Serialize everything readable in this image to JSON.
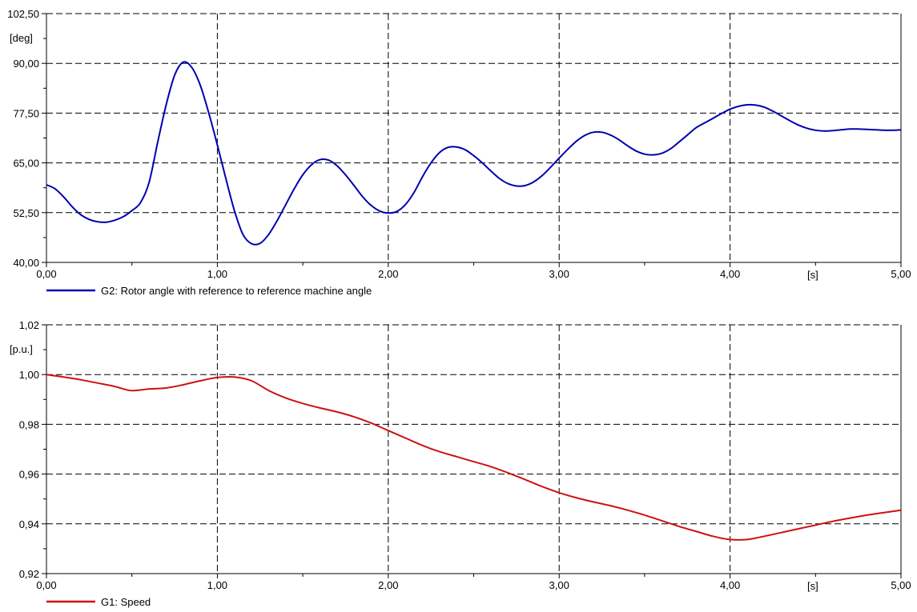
{
  "chart_data": [
    {
      "type": "line",
      "ylabel": "[deg]",
      "xlabel": "[s]",
      "xlim": [
        0,
        5
      ],
      "ylim": [
        40,
        102.5
      ],
      "xticks": [
        {
          "value": 0,
          "label": "0,00"
        },
        {
          "value": 1,
          "label": "1,00"
        },
        {
          "value": 2,
          "label": "2,00"
        },
        {
          "value": 3,
          "label": "3,00"
        },
        {
          "value": 4,
          "label": "4,00"
        },
        {
          "value": 5,
          "label": "5,00"
        }
      ],
      "yticks": [
        {
          "value": 40,
          "label": "40,00"
        },
        {
          "value": 52.5,
          "label": "52,50"
        },
        {
          "value": 65,
          "label": "65,00"
        },
        {
          "value": 77.5,
          "label": "77,50"
        },
        {
          "value": 90,
          "label": "90,00"
        },
        {
          "value": 102.5,
          "label": "102,50"
        }
      ],
      "grid": true,
      "legend_position": "bottom-left",
      "series": [
        {
          "name": "G2: Rotor angle with reference to reference machine angle",
          "color": "#0000b0",
          "x": [
            0,
            0.05,
            0.1,
            0.15,
            0.2,
            0.25,
            0.3,
            0.35,
            0.4,
            0.45,
            0.5,
            0.55,
            0.6,
            0.65,
            0.7,
            0.75,
            0.8,
            0.85,
            0.9,
            0.95,
            1.0,
            1.05,
            1.1,
            1.15,
            1.2,
            1.25,
            1.3,
            1.35,
            1.4,
            1.45,
            1.5,
            1.55,
            1.6,
            1.65,
            1.7,
            1.75,
            1.8,
            1.85,
            1.9,
            1.95,
            2.0,
            2.05,
            2.1,
            2.15,
            2.2,
            2.25,
            2.3,
            2.35,
            2.4,
            2.45,
            2.5,
            2.55,
            2.6,
            2.65,
            2.7,
            2.75,
            2.8,
            2.85,
            2.9,
            2.95,
            3.0,
            3.05,
            3.1,
            3.15,
            3.2,
            3.25,
            3.3,
            3.35,
            3.4,
            3.45,
            3.5,
            3.55,
            3.6,
            3.65,
            3.7,
            3.75,
            3.8,
            3.85,
            3.9,
            3.95,
            4.0,
            4.05,
            4.1,
            4.15,
            4.2,
            4.25,
            4.3,
            4.35,
            4.4,
            4.45,
            4.5,
            4.55,
            4.6,
            4.65,
            4.7,
            4.75,
            4.8,
            4.85,
            4.9,
            4.95,
            5.0
          ],
          "y": [
            59.5,
            58.5,
            56.5,
            54.0,
            52.0,
            50.8,
            50.2,
            50.1,
            50.6,
            51.5,
            53.0,
            55.0,
            60.0,
            70.0,
            79.5,
            87.0,
            90.3,
            89.0,
            84.5,
            77.5,
            69.5,
            61.0,
            53.0,
            47.0,
            44.7,
            44.8,
            47.0,
            50.5,
            54.5,
            58.5,
            62.0,
            64.5,
            65.8,
            65.7,
            64.3,
            62.0,
            59.3,
            56.5,
            54.3,
            52.9,
            52.4,
            52.8,
            54.5,
            57.5,
            61.5,
            65.0,
            67.6,
            68.9,
            69.0,
            68.3,
            66.8,
            65.0,
            63.0,
            61.1,
            59.8,
            59.2,
            59.3,
            60.2,
            61.8,
            63.9,
            66.2,
            68.4,
            70.4,
            71.9,
            72.7,
            72.7,
            72.0,
            70.8,
            69.3,
            68.0,
            67.2,
            67.0,
            67.4,
            68.5,
            70.2,
            72.0,
            73.8,
            75.0,
            76.2,
            77.4,
            78.5,
            79.2,
            79.6,
            79.5,
            79.0,
            78.0,
            76.8,
            75.6,
            74.5,
            73.7,
            73.2,
            73.0,
            73.1,
            73.3,
            73.5,
            73.5,
            73.4,
            73.3,
            73.2,
            73.2,
            73.3
          ]
        }
      ]
    },
    {
      "type": "line",
      "ylabel": "[p.u.]",
      "xlabel": "[s]",
      "xlim": [
        0,
        5
      ],
      "ylim": [
        0.92,
        1.02
      ],
      "xticks": [
        {
          "value": 0,
          "label": "0,00"
        },
        {
          "value": 1,
          "label": "1,00"
        },
        {
          "value": 2,
          "label": "2,00"
        },
        {
          "value": 3,
          "label": "3,00"
        },
        {
          "value": 4,
          "label": "4,00"
        },
        {
          "value": 5,
          "label": "5,00"
        }
      ],
      "yticks": [
        {
          "value": 0.92,
          "label": "0,92"
        },
        {
          "value": 0.94,
          "label": "0,94"
        },
        {
          "value": 0.96,
          "label": "0,96"
        },
        {
          "value": 0.98,
          "label": "0,98"
        },
        {
          "value": 1.0,
          "label": "1,00"
        },
        {
          "value": 1.02,
          "label": "1,02"
        }
      ],
      "grid": true,
      "legend_position": "bottom-left",
      "series": [
        {
          "name": "G1: Speed",
          "color": "#d01010",
          "x": [
            0,
            0.1,
            0.2,
            0.3,
            0.4,
            0.48,
            0.52,
            0.6,
            0.7,
            0.8,
            0.9,
            1.0,
            1.1,
            1.2,
            1.3,
            1.4,
            1.5,
            1.6,
            1.7,
            1.8,
            1.9,
            2.0,
            2.1,
            2.2,
            2.3,
            2.4,
            2.5,
            2.6,
            2.7,
            2.8,
            2.9,
            3.0,
            3.1,
            3.2,
            3.3,
            3.4,
            3.5,
            3.6,
            3.7,
            3.8,
            3.9,
            4.0,
            4.1,
            4.2,
            4.3,
            4.4,
            4.5,
            4.6,
            4.7,
            4.8,
            4.9,
            5.0
          ],
          "y": [
            1.0,
            0.999,
            0.9979,
            0.9966,
            0.9952,
            0.9937,
            0.9936,
            0.9942,
            0.9946,
            0.9959,
            0.9975,
            0.9988,
            0.999,
            0.9975,
            0.9936,
            0.9906,
            0.9884,
            0.9866,
            0.985,
            0.983,
            0.9805,
            0.9775,
            0.9745,
            0.9715,
            0.969,
            0.967,
            0.965,
            0.963,
            0.9605,
            0.9578,
            0.955,
            0.9525,
            0.9505,
            0.9488,
            0.9473,
            0.9455,
            0.9435,
            0.9413,
            0.939,
            0.937,
            0.935,
            0.9337,
            0.9337,
            0.935,
            0.9365,
            0.938,
            0.9395,
            0.941,
            0.9423,
            0.9435,
            0.9445,
            0.9455
          ]
        }
      ]
    }
  ]
}
